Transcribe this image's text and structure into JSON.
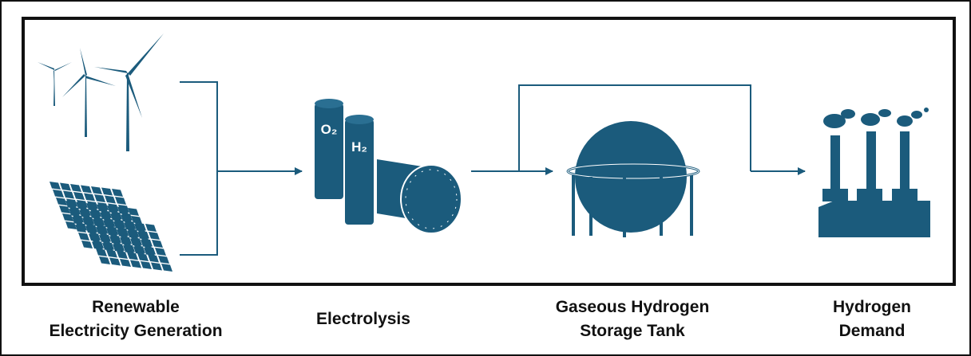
{
  "stages": [
    {
      "label_lines": [
        "Renewable",
        "Electricity Generation"
      ]
    },
    {
      "label_lines": [
        "Electrolysis"
      ]
    },
    {
      "label_lines": [
        "Gaseous Hydrogen",
        "Storage Tank"
      ]
    },
    {
      "label_lines": [
        "Hydrogen",
        "Demand"
      ]
    }
  ],
  "icon_labels": {
    "oxygen": "O₂",
    "hydrogen": "H₂"
  }
}
